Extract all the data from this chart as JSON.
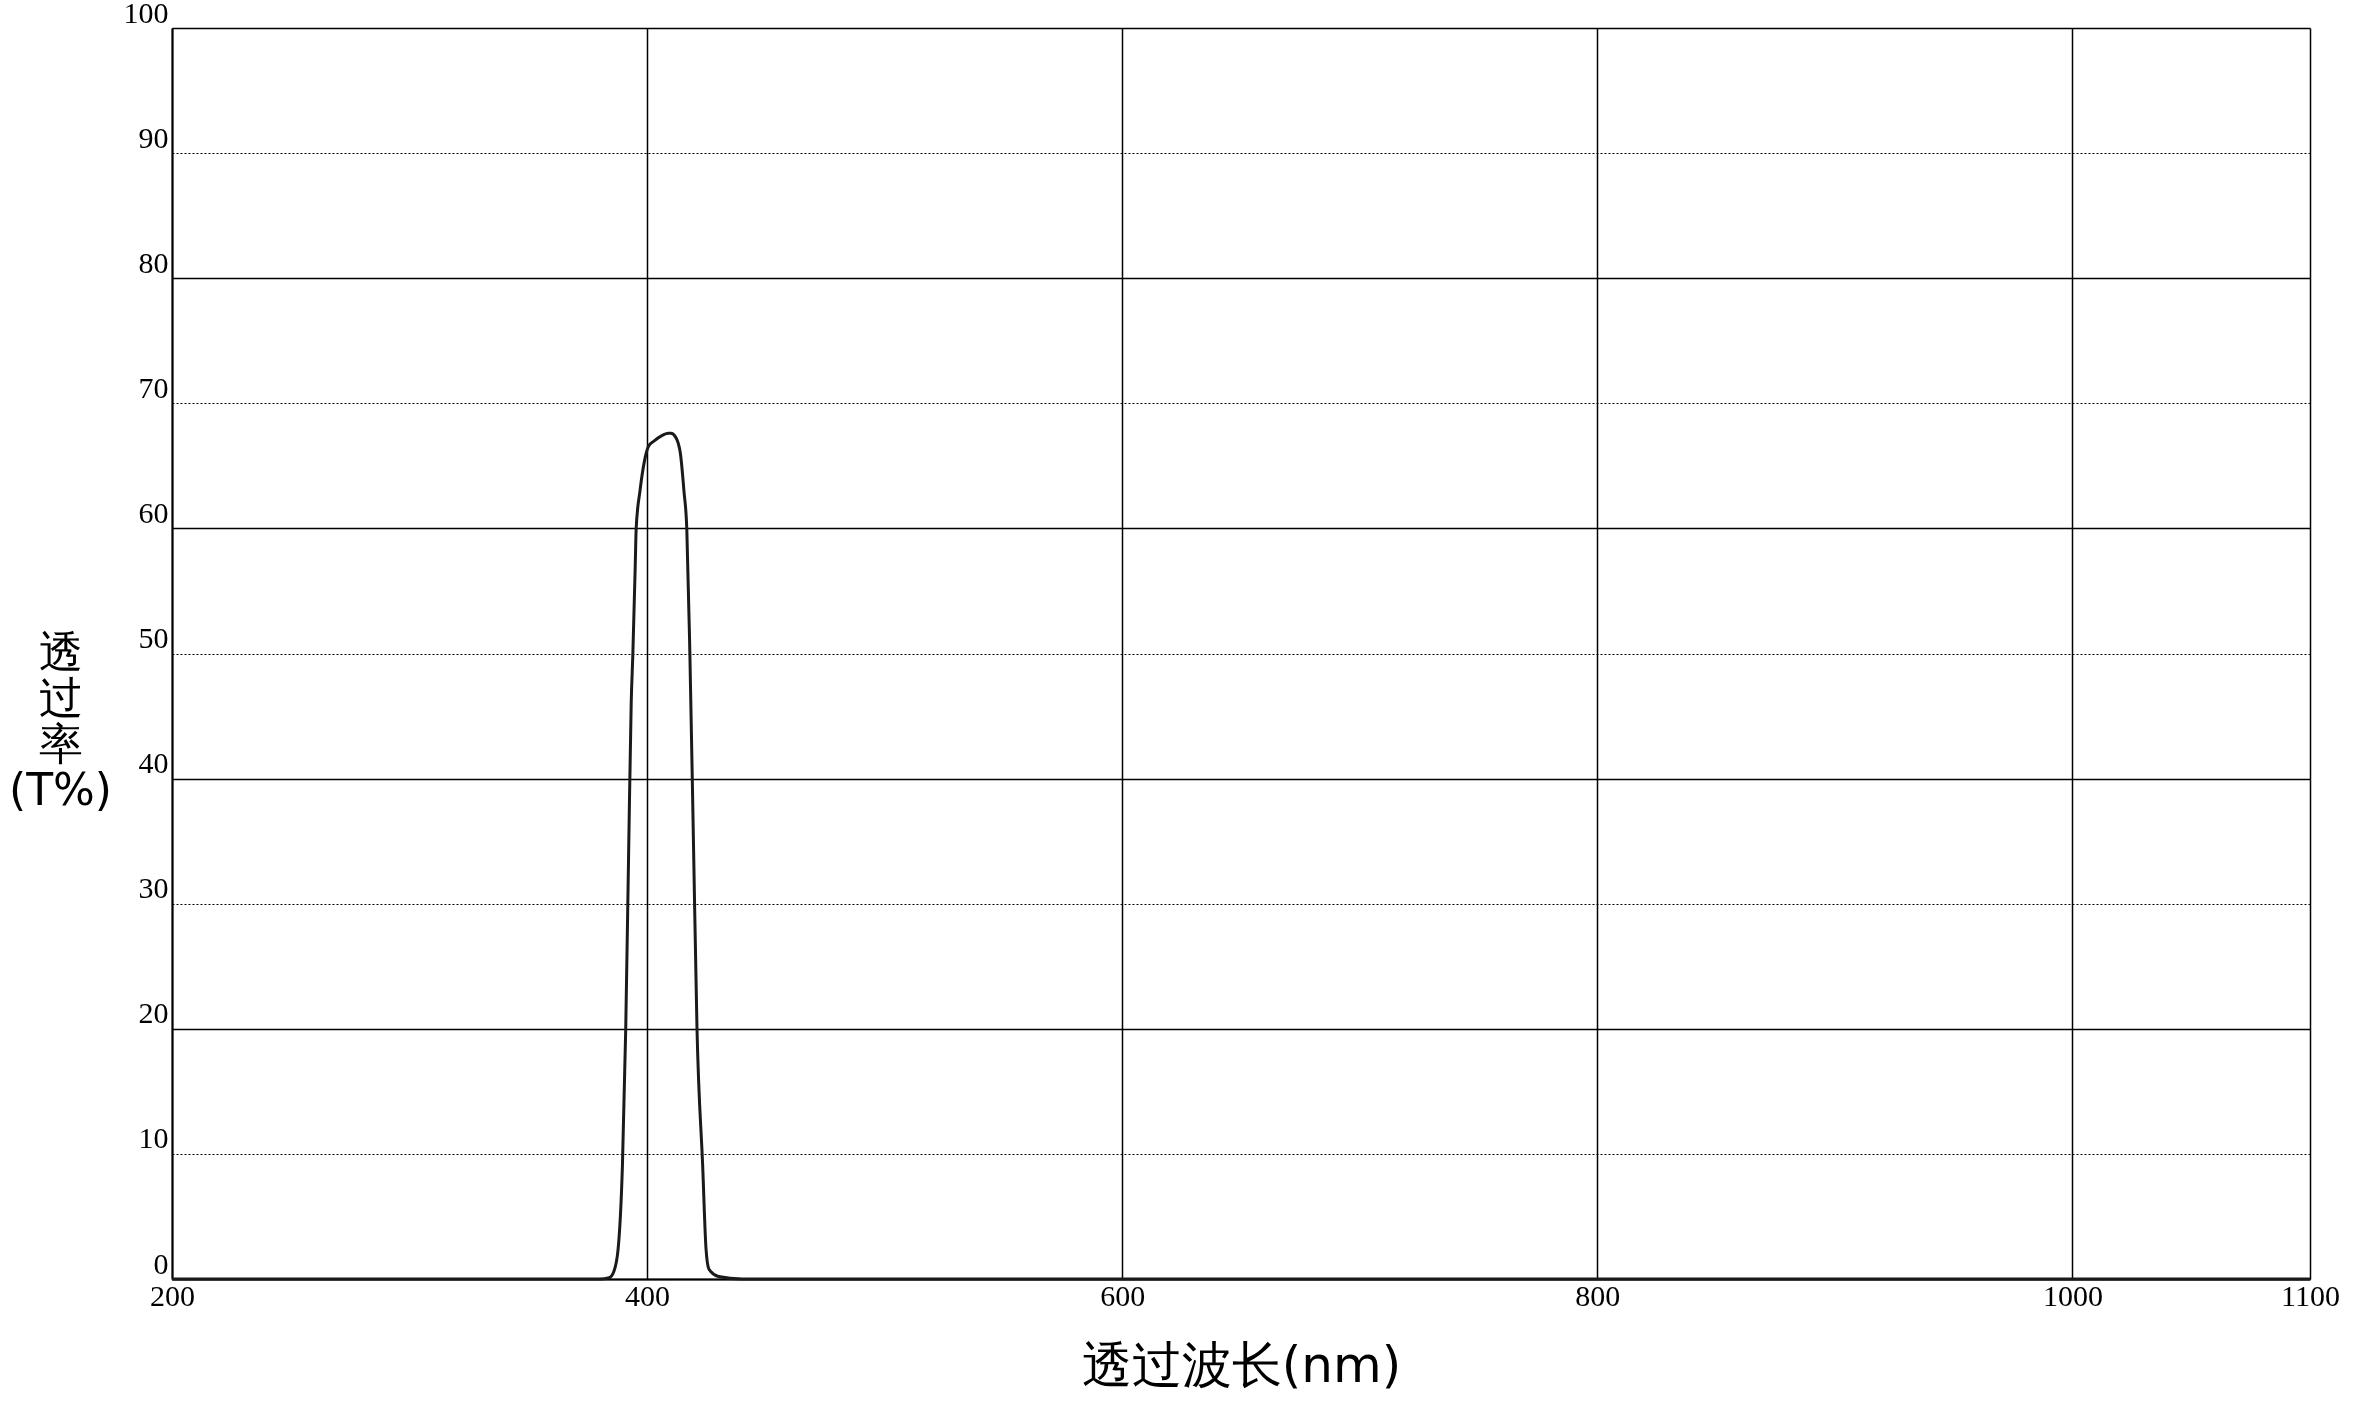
{
  "chart_data": {
    "type": "line",
    "xlabel": "透过波长(nm)",
    "ylabel": "透过率(T%)",
    "x": [
      200,
      380,
      384,
      386,
      387.8,
      389.6,
      391,
      392.3,
      393.3,
      394,
      395,
      395.4,
      397,
      399,
      400.7,
      403,
      406,
      409,
      410,
      412,
      414,
      415.5,
      416.7,
      418,
      419.5,
      421,
      423.4,
      424.8,
      426,
      430,
      440,
      1100
    ],
    "series": [
      {
        "color": "#1a1a1a",
        "values": [
          0,
          0,
          0.1,
          0.6,
          2.4,
          9,
          20,
          35,
          46,
          50,
          57,
          60,
          63,
          65.5,
          66.6,
          67,
          67.4,
          67.6,
          67.6,
          67.3,
          66,
          63,
          60,
          50,
          35,
          20,
          9,
          2.4,
          0.8,
          0.2,
          0,
          0
        ]
      }
    ],
    "xlim": [
      200,
      1100
    ],
    "xticks": [
      200,
      400,
      600,
      800,
      1000,
      1100
    ],
    "ylim": [
      0,
      100
    ],
    "yticks": [
      0,
      10,
      20,
      30,
      40,
      50,
      60,
      70,
      80,
      90,
      100
    ],
    "grid": true,
    "marker": "none",
    "line_style": "solid"
  }
}
